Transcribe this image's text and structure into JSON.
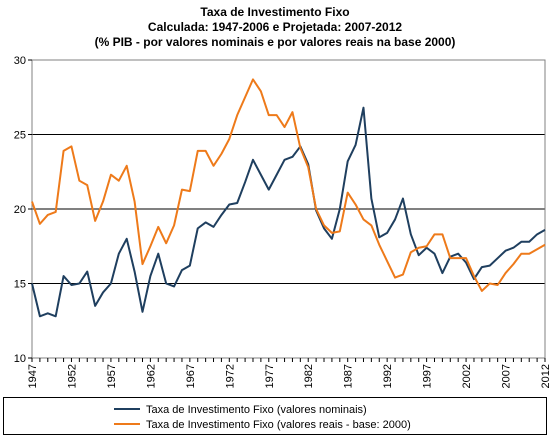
{
  "titles": {
    "line1": "Taxa de Investimento Fixo",
    "line2": "Calculada: 1947-2006 e Projetada: 2007-2012",
    "line3": "(% PIB - por valores nominais e por valores reais na base 2000)"
  },
  "colors": {
    "nominal": "#1f3f5f",
    "real": "#ee7a1a",
    "gridline": "#000000"
  },
  "chart_data": {
    "type": "line",
    "title": "Taxa de Investimento Fixo",
    "subtitle": "Calculada: 1947-2006 e Projetada: 2007-2012 (% PIB - por valores nominais e por valores reais na base 2000)",
    "xlabel": "",
    "ylabel": "",
    "ylim": [
      10,
      30
    ],
    "yticks": [
      "10",
      "15",
      "20",
      "25",
      "30"
    ],
    "xticks": [
      "1947",
      "1952",
      "1957",
      "1962",
      "1967",
      "1972",
      "1977",
      "1982",
      "1987",
      "1992",
      "1997",
      "2002",
      "2007",
      "2012"
    ],
    "x": [
      1947,
      1948,
      1949,
      1950,
      1951,
      1952,
      1953,
      1954,
      1955,
      1956,
      1957,
      1958,
      1959,
      1960,
      1961,
      1962,
      1963,
      1964,
      1965,
      1966,
      1967,
      1968,
      1969,
      1970,
      1971,
      1972,
      1973,
      1974,
      1975,
      1976,
      1977,
      1978,
      1979,
      1980,
      1981,
      1982,
      1983,
      1984,
      1985,
      1986,
      1987,
      1988,
      1989,
      1990,
      1991,
      1992,
      1993,
      1994,
      1995,
      1996,
      1997,
      1998,
      1999,
      2000,
      2001,
      2002,
      2003,
      2004,
      2005,
      2006,
      2007,
      2008,
      2009,
      2010,
      2011,
      2012
    ],
    "grid": "horizontal",
    "legend_position": "bottom",
    "series": [
      {
        "name": "Taxa de Investimento Fixo (valores nominais)",
        "values": [
          15.0,
          12.8,
          13.0,
          12.8,
          15.5,
          14.9,
          15.0,
          15.8,
          13.5,
          14.4,
          15.0,
          17.0,
          18.0,
          15.8,
          13.1,
          15.5,
          17.0,
          15.0,
          14.8,
          15.9,
          16.2,
          18.7,
          19.1,
          18.8,
          19.6,
          20.3,
          20.4,
          21.8,
          23.3,
          22.3,
          21.3,
          22.3,
          23.3,
          23.5,
          24.2,
          23.0,
          19.9,
          18.7,
          18.0,
          20.0,
          23.2,
          24.3,
          26.8,
          20.7,
          18.1,
          18.4,
          19.3,
          20.7,
          18.3,
          16.9,
          17.4,
          17.0,
          15.7,
          16.8,
          17.0,
          16.4,
          15.3,
          16.1,
          16.2,
          16.7,
          17.2,
          17.4,
          17.8,
          17.8,
          18.3,
          18.6
        ]
      },
      {
        "name": "Taxa de Investimento Fixo (valores reais - base: 2000)",
        "values": [
          20.5,
          19.0,
          19.6,
          19.8,
          23.9,
          24.2,
          21.9,
          21.6,
          19.2,
          20.5,
          22.3,
          21.9,
          22.9,
          20.5,
          16.3,
          17.5,
          18.8,
          17.7,
          18.9,
          21.3,
          21.2,
          23.9,
          23.9,
          22.9,
          23.7,
          24.7,
          26.3,
          27.5,
          28.7,
          27.9,
          26.3,
          26.3,
          25.5,
          26.5,
          24.1,
          22.8,
          20.0,
          18.9,
          18.4,
          18.5,
          21.1,
          20.3,
          19.3,
          18.9,
          17.6,
          16.5,
          15.4,
          15.6,
          17.1,
          17.4,
          17.5,
          18.3,
          18.3,
          16.7,
          16.7,
          16.7,
          15.5,
          14.5,
          15.0,
          14.9,
          15.7,
          16.3,
          17.0,
          17.0,
          17.3,
          17.6
        ]
      }
    ]
  }
}
